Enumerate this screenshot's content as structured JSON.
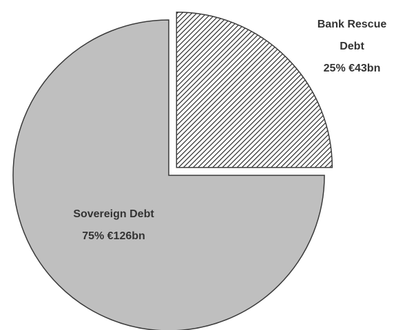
{
  "chart_data": {
    "type": "pie",
    "categories": [
      "Bank Rescue Debt",
      "Sovereign Debt"
    ],
    "values": [
      25,
      75
    ],
    "value_labels": [
      "25% €43bn",
      "75% €126bn"
    ],
    "colors": [
      "#1a1a1a",
      "#bfbfbf"
    ],
    "exploded": [
      true,
      false
    ]
  }
}
